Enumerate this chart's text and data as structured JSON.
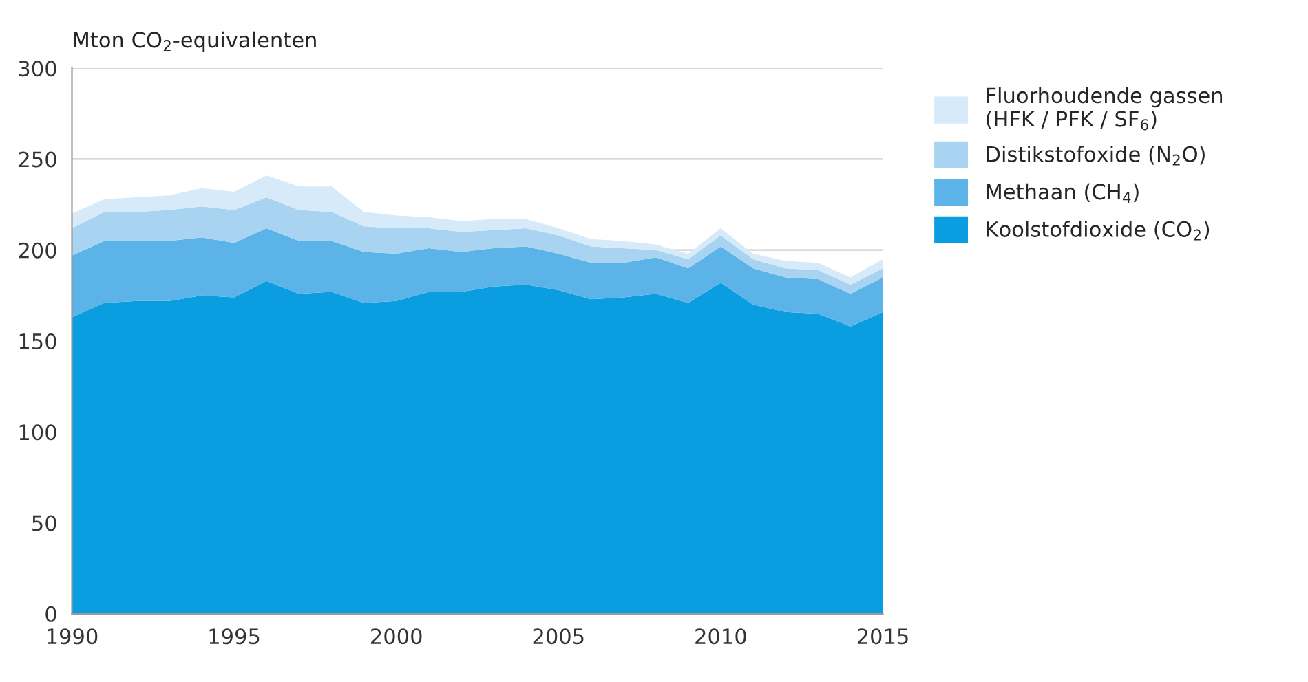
{
  "chart_data": {
    "type": "area",
    "stacked": true,
    "ylabel": "Mton CO$_{2}$-equivalenten",
    "x": [
      1990,
      1991,
      1992,
      1993,
      1994,
      1995,
      1996,
      1997,
      1998,
      1999,
      2000,
      2001,
      2002,
      2003,
      2004,
      2005,
      2006,
      2007,
      2008,
      2009,
      2010,
      2011,
      2012,
      2013,
      2014,
      2015
    ],
    "series": [
      {
        "name": "Koolstofdioxide (CO$_{2}$)",
        "color": "#0a9ee0",
        "values": [
          163,
          171,
          172,
          172,
          175,
          174,
          183,
          176,
          177,
          171,
          172,
          177,
          177,
          180,
          181,
          178,
          173,
          174,
          176,
          171,
          182,
          170,
          166,
          165,
          158,
          166
        ]
      },
      {
        "name": "Methaan (CH$_{4}$)",
        "color": "#5cb3e8",
        "values": [
          34,
          34,
          33,
          33,
          32,
          30,
          29,
          29,
          28,
          28,
          26,
          24,
          22,
          21,
          21,
          20,
          20,
          19,
          20,
          19,
          20,
          20,
          19,
          19,
          18,
          19
        ]
      },
      {
        "name": "Distikstofoxide (N$_{2}$O)",
        "color": "#a8d4f2",
        "values": [
          15,
          16,
          16,
          17,
          17,
          18,
          17,
          17,
          16,
          14,
          14,
          11,
          11,
          10,
          10,
          10,
          9,
          8,
          4,
          5,
          6,
          5,
          5,
          5,
          5,
          5
        ]
      },
      {
        "name": "Fluorhoudende gassen\n(HFK / PFK / SF$_{6}$)",
        "color": "#d6eafa",
        "values": [
          8,
          7,
          8,
          8,
          10,
          10,
          12,
          13,
          14,
          8,
          7,
          6,
          6,
          6,
          5,
          4,
          4,
          4,
          3,
          3,
          4,
          3,
          4,
          4,
          4,
          5
        ]
      }
    ],
    "xlim": [
      1990,
      2015
    ],
    "xticks": [
      1990,
      1995,
      2000,
      2005,
      2010,
      2015
    ],
    "ylim": [
      0,
      300
    ],
    "yticks": [
      0,
      50,
      100,
      150,
      200,
      250,
      300
    ],
    "grid": "y",
    "legend": "top right",
    "marker": "none"
  }
}
